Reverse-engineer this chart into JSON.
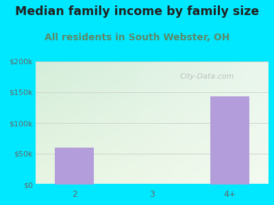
{
  "title": "Median family income by family size",
  "subtitle": "All residents in South Webster, OH",
  "categories": [
    "2",
    "3",
    "4+"
  ],
  "values": [
    60000,
    0,
    143000
  ],
  "bar_color": "#b39ddb",
  "ylim": [
    0,
    200000
  ],
  "yticks": [
    0,
    50000,
    100000,
    150000,
    200000
  ],
  "ytick_labels": [
    "$0",
    "$50k",
    "$100k",
    "$150k",
    "$200k"
  ],
  "bg_outer": "#00e8ff",
  "plot_bg_topleft": "#d4eeda",
  "plot_bg_right": "#f0f8f0",
  "plot_bg_bottom": "#e8f5e2",
  "title_color": "#222222",
  "subtitle_color": "#5a8a6a",
  "tick_color": "#666666",
  "watermark": "City-Data.com",
  "title_fontsize": 12.5,
  "subtitle_fontsize": 10,
  "bar_width": 0.5
}
